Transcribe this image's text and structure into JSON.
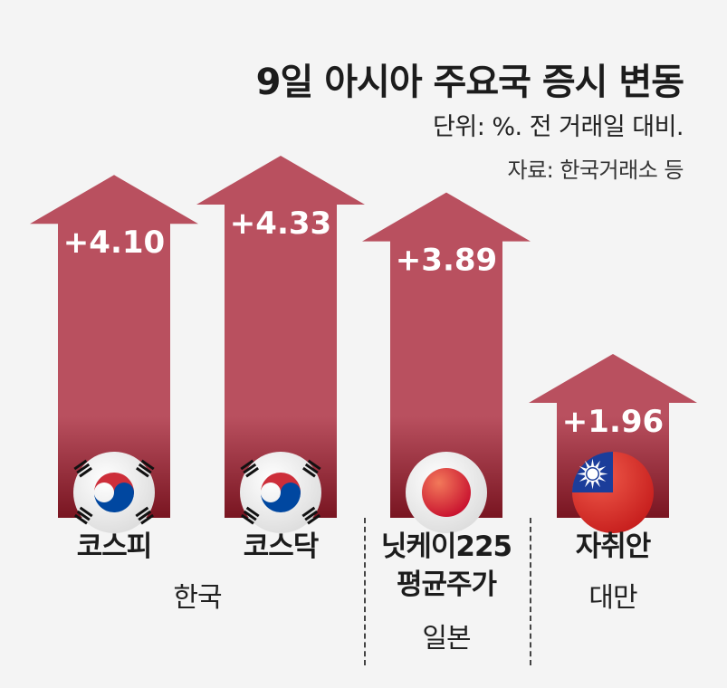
{
  "title": "9일 아시아 주요국 증시 변동",
  "unit": "단위: %. 전 거래일 대비.",
  "source": "자료: 한국거래소 등",
  "colors": {
    "arrow": "#b9505f",
    "arrow_dark": "#7a1622",
    "label": "#ffffff"
  },
  "chart_data": {
    "type": "bar",
    "categories": [
      "코스피",
      "코스닥",
      "닛케이225 평균주가",
      "자취안"
    ],
    "values": [
      4.1,
      4.33,
      3.89,
      1.96
    ],
    "value_labels": [
      "+4.10",
      "+4.33",
      "+3.89",
      "+1.96"
    ],
    "category_lines": [
      [
        "코스피"
      ],
      [
        "코스닥"
      ],
      [
        "닛케이225",
        "평균주가"
      ],
      [
        "자취안"
      ]
    ],
    "countries": [
      "한국",
      "한국",
      "일본",
      "대만"
    ],
    "country_labels": [
      {
        "text": "한국",
        "span": [
          0,
          1
        ]
      },
      {
        "text": "일본",
        "span": [
          2,
          2
        ]
      },
      {
        "text": "대만",
        "span": [
          3,
          3
        ]
      }
    ],
    "flags": [
      "south-korea-flag",
      "south-korea-flag",
      "japan-flag",
      "taiwan-flag"
    ],
    "legend": "none",
    "grid": false
  }
}
